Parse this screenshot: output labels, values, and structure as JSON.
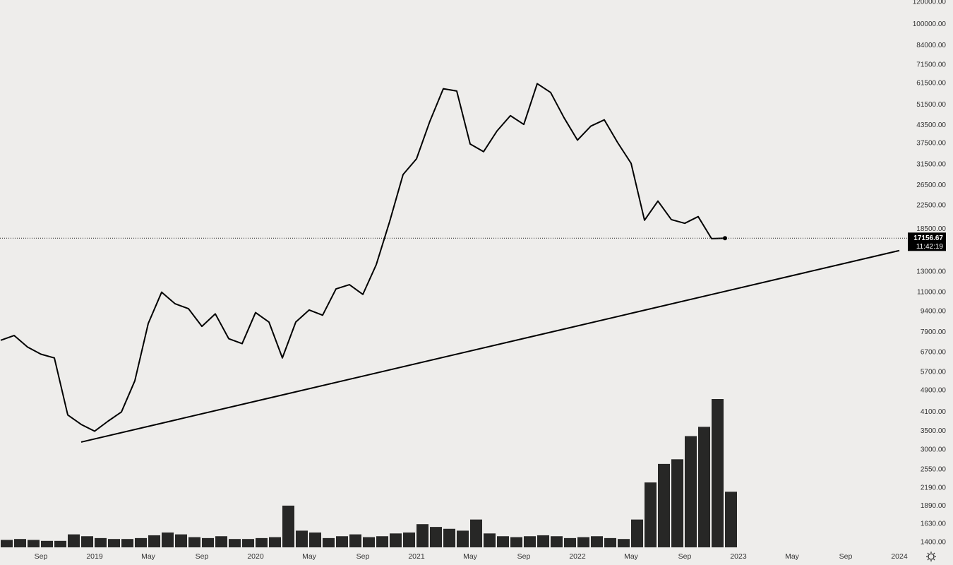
{
  "chart_data": {
    "type": "line",
    "log_scale": true,
    "grid": false,
    "x": [
      "2018-06",
      "2018-07",
      "2018-08",
      "2018-09",
      "2018-10",
      "2018-11",
      "2018-12",
      "2019-01",
      "2019-02",
      "2019-03",
      "2019-04",
      "2019-05",
      "2019-06",
      "2019-07",
      "2019-08",
      "2019-09",
      "2019-10",
      "2019-11",
      "2019-12",
      "2020-01",
      "2020-02",
      "2020-03",
      "2020-04",
      "2020-05",
      "2020-06",
      "2020-07",
      "2020-08",
      "2020-09",
      "2020-10",
      "2020-11",
      "2020-12",
      "2021-01",
      "2021-02",
      "2021-03",
      "2021-04",
      "2021-05",
      "2021-06",
      "2021-07",
      "2021-08",
      "2021-09",
      "2021-10",
      "2021-11",
      "2021-12",
      "2022-01",
      "2022-02",
      "2022-03",
      "2022-04",
      "2022-05",
      "2022-06",
      "2022-07",
      "2022-08",
      "2022-09",
      "2022-10",
      "2022-11",
      "2022-12"
    ],
    "series": [
      {
        "color": "#000000",
        "values": [
          7400,
          7700,
          7000,
          6600,
          6400,
          4000,
          3700,
          3500,
          3800,
          4100,
          5300,
          8500,
          11000,
          10000,
          9600,
          8300,
          9200,
          7500,
          7200,
          9300,
          8600,
          6400,
          8600,
          9500,
          9100,
          11300,
          11700,
          10800,
          13800,
          19700,
          29000,
          33000,
          45000,
          58800,
          57700,
          37300,
          35000,
          41500,
          47100,
          43800,
          61300,
          57000,
          46300,
          38500,
          43200,
          45500,
          37700,
          31800,
          19900,
          23300,
          20000,
          19400,
          20500,
          17100,
          17156.67
        ]
      }
    ],
    "volume": {
      "color": "#111111",
      "values": [
        8,
        9,
        8,
        7,
        7,
        14,
        12,
        10,
        9,
        9,
        10,
        13,
        16,
        14,
        11,
        10,
        12,
        9,
        9,
        10,
        11,
        45,
        18,
        16,
        10,
        12,
        14,
        11,
        12,
        15,
        16,
        25,
        22,
        20,
        18,
        30,
        15,
        12,
        11,
        12,
        13,
        12,
        10,
        11,
        12,
        10,
        9,
        30,
        70,
        90,
        95,
        120,
        130,
        160,
        60
      ]
    },
    "trendline": {
      "color": "#000000",
      "x": [
        "2018-12",
        "2024-01"
      ],
      "values": [
        3200,
        15500
      ]
    },
    "last_price": 17156.67,
    "countdown": "11:42:19",
    "ylim": [
      1400,
      120000
    ],
    "yticks": [
      {
        "value": 120000,
        "label": "120000.00"
      },
      {
        "value": 100000,
        "label": "100000.00"
      },
      {
        "value": 84000,
        "label": "84000.00"
      },
      {
        "value": 71500,
        "label": "71500.00"
      },
      {
        "value": 61500,
        "label": "61500.00"
      },
      {
        "value": 51500,
        "label": "51500.00"
      },
      {
        "value": 43500,
        "label": "43500.00"
      },
      {
        "value": 37500,
        "label": "37500.00"
      },
      {
        "value": 31500,
        "label": "31500.00"
      },
      {
        "value": 26500,
        "label": "26500.00"
      },
      {
        "value": 22500,
        "label": "22500.00"
      },
      {
        "value": 18500,
        "label": "18500.00"
      },
      {
        "value": 13000,
        "label": "13000.00"
      },
      {
        "value": 11000,
        "label": "11000.00"
      },
      {
        "value": 9400,
        "label": "9400.00"
      },
      {
        "value": 7900,
        "label": "7900.00"
      },
      {
        "value": 6700,
        "label": "6700.00"
      },
      {
        "value": 5700,
        "label": "5700.00"
      },
      {
        "value": 4900,
        "label": "4900.00"
      },
      {
        "value": 4100,
        "label": "4100.00"
      },
      {
        "value": 3500,
        "label": "3500.00"
      },
      {
        "value": 3000,
        "label": "3000.00"
      },
      {
        "value": 2550,
        "label": "2550.00"
      },
      {
        "value": 2190,
        "label": "2190.00"
      },
      {
        "value": 1890,
        "label": "1890.00"
      },
      {
        "value": 1630,
        "label": "1630.00"
      },
      {
        "value": 1400,
        "label": "1400.00"
      }
    ],
    "xticks": [
      {
        "value": "2018-09",
        "label": "Sep"
      },
      {
        "value": "2019-01",
        "label": "2019"
      },
      {
        "value": "2019-05",
        "label": "May"
      },
      {
        "value": "2019-09",
        "label": "Sep"
      },
      {
        "value": "2020-01",
        "label": "2020"
      },
      {
        "value": "2020-05",
        "label": "May"
      },
      {
        "value": "2020-09",
        "label": "Sep"
      },
      {
        "value": "2021-01",
        "label": "2021"
      },
      {
        "value": "2021-05",
        "label": "May"
      },
      {
        "value": "2021-09",
        "label": "Sep"
      },
      {
        "value": "2022-01",
        "label": "2022"
      },
      {
        "value": "2022-05",
        "label": "May"
      },
      {
        "value": "2022-09",
        "label": "Sep"
      },
      {
        "value": "2023-01",
        "label": "2023"
      },
      {
        "value": "2023-05",
        "label": "May"
      },
      {
        "value": "2023-09",
        "label": "Sep"
      },
      {
        "value": "2024-01",
        "label": "2024"
      }
    ]
  }
}
